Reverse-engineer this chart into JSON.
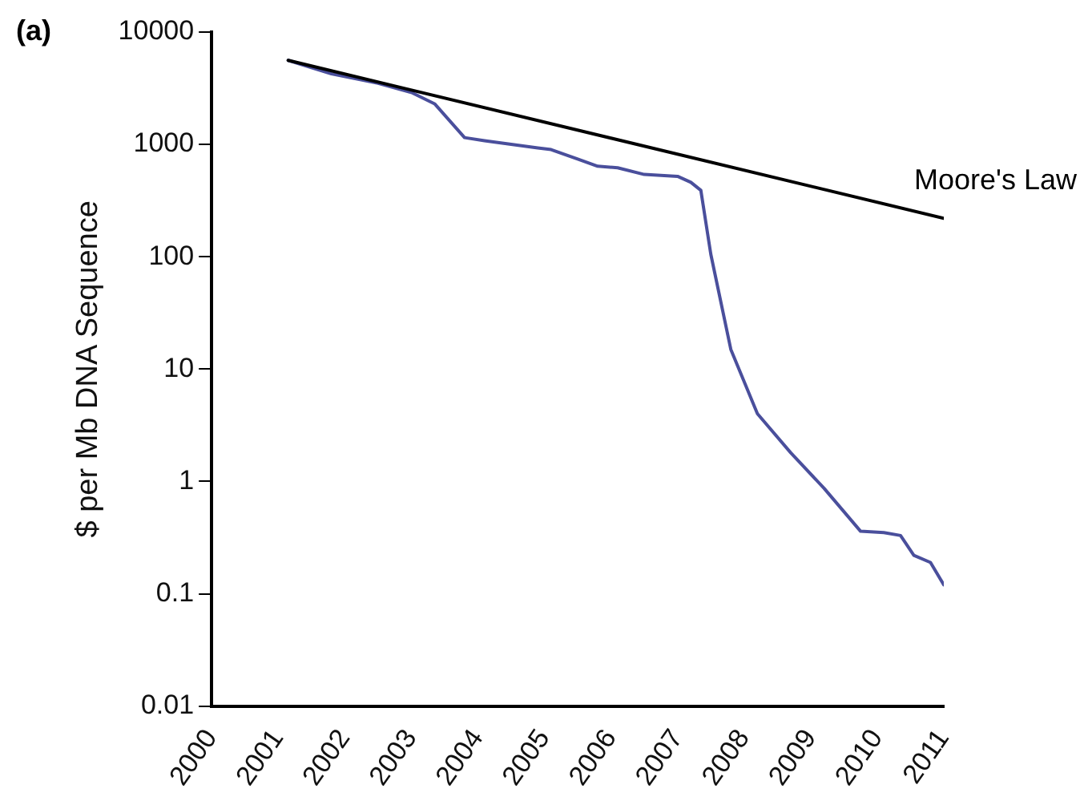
{
  "chart_data": {
    "type": "line",
    "title": "(a)",
    "ylabel": "$ per Mb DNA Sequence",
    "log": "y",
    "grid": false,
    "legend": false,
    "marker": "none",
    "line_style": "solid",
    "xlim": [
      2000,
      2011
    ],
    "xticks": [
      2000,
      2001,
      2002,
      2003,
      2004,
      2005,
      2006,
      2007,
      2008,
      2009,
      2010,
      2011
    ],
    "ylim": [
      0.01,
      10000
    ],
    "yticks": [
      0.01,
      0.1,
      1,
      10,
      100,
      1000,
      10000
    ],
    "series": [
      {
        "name": "Moore's Law",
        "color": "#000000",
        "x": [
          2001.15,
          2011.0
        ],
        "values": [
          5600,
          220
        ]
      },
      {
        "color": "#4a4f9c",
        "x": [
          2001.15,
          2001.8,
          2002.5,
          2003.0,
          2003.35,
          2003.8,
          2004.1,
          2004.9,
          2005.1,
          2005.5,
          2005.8,
          2006.1,
          2006.5,
          2007.0,
          2007.2,
          2007.35,
          2007.5,
          2007.8,
          2008.2,
          2008.7,
          2009.2,
          2009.75,
          2010.1,
          2010.35,
          2010.55,
          2010.8,
          2011.0
        ],
        "values": [
          5600,
          4250,
          3500,
          2900,
          2300,
          1150,
          1080,
          930,
          900,
          740,
          640,
          620,
          540,
          520,
          460,
          390,
          105,
          15,
          4,
          1.8,
          0.87,
          0.36,
          0.35,
          0.33,
          0.22,
          0.19,
          0.12
        ]
      }
    ]
  }
}
